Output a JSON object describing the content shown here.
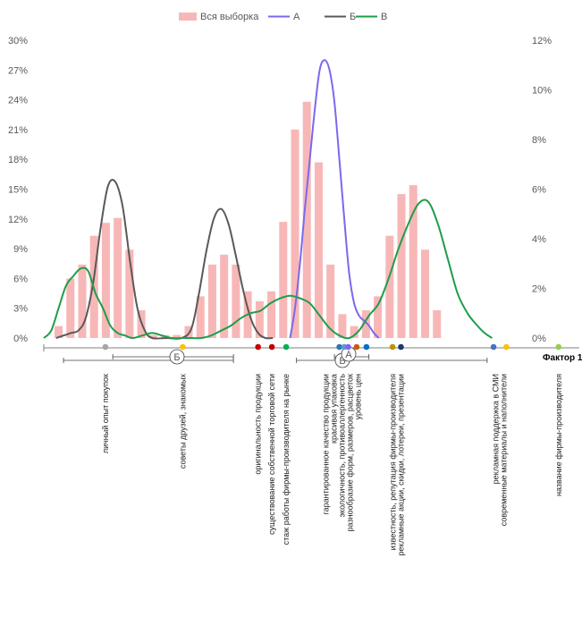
{
  "chart_data": {
    "type": "bar",
    "legend": {
      "position": "top",
      "entries": [
        {
          "key": "all",
          "label": "Вся выборка",
          "kind": "bar"
        },
        {
          "key": "A",
          "label": "А",
          "kind": "line"
        },
        {
          "key": "B",
          "label": "Б",
          "kind": "line"
        },
        {
          "key": "V",
          "label": "В",
          "kind": "line"
        }
      ]
    },
    "y_left": {
      "ticks": [
        "0%",
        "3%",
        "6%",
        "9%",
        "12%",
        "15%",
        "18%",
        "21%",
        "24%",
        "27%",
        "30%"
      ],
      "ylim": [
        0,
        30
      ]
    },
    "y_right": {
      "ticks": [
        "0%",
        "2%",
        "4%",
        "6%",
        "8%",
        "10%",
        "12%"
      ],
      "ylim": [
        0,
        12
      ]
    },
    "xlabel": "Фактор 1",
    "xlim": [
      0,
      100
    ],
    "grid": false,
    "colors": {
      "all": "#f7b7b7",
      "A": "#7b68ee",
      "B": "#595959",
      "V": "#1e9e49"
    },
    "series": [
      {
        "name": "Вся выборка",
        "key": "all",
        "axis": "left",
        "x": [
          3,
          5.4,
          7.8,
          10.2,
          12.6,
          15,
          17.4,
          19.8,
          22.2,
          24.6,
          27,
          29.4,
          31.8,
          34.2,
          36.6,
          39,
          41.4,
          43.8,
          46.2,
          48.6,
          51,
          53.4,
          55.8,
          58.2,
          60.6,
          63,
          65.4,
          67.8,
          70.2,
          72.6,
          75,
          77.4,
          79.8,
          82.2,
          84.6,
          87,
          89.4
        ],
        "values": [
          1.2,
          6,
          7.4,
          10.3,
          11.6,
          12.1,
          8.9,
          2.8,
          0.3,
          0.3,
          0.3,
          1.2,
          4.2,
          7.4,
          8.4,
          7.4,
          4.7,
          3.7,
          4.7,
          11.7,
          21,
          23.8,
          17.7,
          7.4,
          2.4,
          1.2,
          2.8,
          4.2,
          10.3,
          14.5,
          15.4,
          8.9,
          2.8,
          0,
          0,
          0,
          0
        ]
      },
      {
        "name": "А",
        "key": "A",
        "axis": "right",
        "x": [
          50,
          51,
          52,
          53,
          54,
          55,
          56,
          57,
          58,
          59,
          60,
          61,
          62,
          63,
          64,
          65,
          66,
          67,
          68
        ],
        "values": [
          0,
          1.2,
          3,
          5.2,
          7.2,
          9.2,
          10.8,
          11.2,
          10.8,
          9.5,
          7.2,
          4.8,
          2.6,
          1.4,
          0.9,
          0.7,
          0.5,
          0.2,
          0
        ]
      },
      {
        "name": "Б",
        "key": "B",
        "axis": "right",
        "x": [
          2.5,
          4,
          5.5,
          7,
          8.5,
          10,
          11.5,
          13,
          14.5,
          16,
          17.5,
          19,
          20.5,
          22,
          25,
          28,
          30,
          31.5,
          33,
          34.5,
          36,
          37.5,
          39,
          40.5,
          42,
          43.5,
          45,
          46.5
        ],
        "values": [
          0,
          0.1,
          0.2,
          0.3,
          0.8,
          2.2,
          4.4,
          6.1,
          6.3,
          5.3,
          3.1,
          1.2,
          0.3,
          0,
          0,
          0,
          0.4,
          1.8,
          3.5,
          4.8,
          5.2,
          4.6,
          3.3,
          1.9,
          0.8,
          0.2,
          0,
          0
        ]
      },
      {
        "name": "В",
        "key": "V",
        "axis": "right",
        "x": [
          0,
          1.5,
          3,
          4.5,
          6,
          7.5,
          9,
          10.5,
          12,
          13.5,
          15,
          16.5,
          18,
          20,
          22,
          24,
          26,
          28,
          30,
          32,
          34,
          36,
          38,
          40,
          42,
          44,
          46,
          48,
          50,
          52,
          54,
          56,
          58,
          60,
          62,
          64,
          66,
          68,
          70,
          72,
          74,
          76,
          78,
          80,
          82,
          84,
          86,
          88,
          89.5,
          91
        ],
        "values": [
          0,
          0.3,
          1.2,
          2.1,
          2.5,
          2.8,
          2.7,
          1.8,
          1.2,
          0.5,
          0.2,
          0.1,
          0,
          0.1,
          0.2,
          0.1,
          0,
          0,
          0,
          0,
          0.1,
          0.3,
          0.5,
          0.8,
          1,
          1.1,
          1.4,
          1.6,
          1.7,
          1.6,
          1.4,
          0.9,
          0.4,
          0.1,
          0,
          0.3,
          0.9,
          1.4,
          2.4,
          3.6,
          4.6,
          5.4,
          5.5,
          4.6,
          3.2,
          1.8,
          1,
          0.5,
          0.2,
          0
        ]
      }
    ],
    "markers": [
      {
        "x": 12.5,
        "color": "#a6a6a6"
      },
      {
        "x": 28.2,
        "color": "#ffc000"
      },
      {
        "x": 43.5,
        "color": "#c00000"
      },
      {
        "x": 46.3,
        "color": "#c00000"
      },
      {
        "x": 49.2,
        "color": "#00b050"
      },
      {
        "x": 60,
        "color": "#2e75b6"
      },
      {
        "x": 61,
        "color": "#5b9bd5"
      },
      {
        "x": 61.8,
        "color": "#7b68ee"
      },
      {
        "x": 63.5,
        "color": "#c55a11"
      },
      {
        "x": 65.5,
        "color": "#0070c0"
      },
      {
        "x": 70.8,
        "color": "#bf9000"
      },
      {
        "x": 72.5,
        "color": "#1f3864"
      },
      {
        "x": 91.3,
        "color": "#4472c4"
      },
      {
        "x": 93.9,
        "color": "#ffc000"
      },
      {
        "x": 104.5,
        "color": "#92d050"
      }
    ],
    "category_labels": [
      {
        "x": 12.5,
        "lines": [
          "личный опыт покупок"
        ]
      },
      {
        "x": 28.2,
        "lines": [
          "советы друзей, знакомых"
        ]
      },
      {
        "x": 43.5,
        "lines": [
          "оригинальность продукции"
        ]
      },
      {
        "x": 46.3,
        "lines": [
          "существование собственной торговой сети"
        ]
      },
      {
        "x": 49.2,
        "lines": [
          "стаж работы фирмы-производителя на рынке"
        ]
      },
      {
        "x": 60.5,
        "lines": [
          "гарантированное качество продукции",
          "красивая упаковка",
          "экологичность, противоаллергенность",
          "разнообразие форм, размеров, расцветок",
          "уровень цен"
        ]
      },
      {
        "x": 71.7,
        "lines": [
          "известность, репутация фирмы-производителя",
          "рекламные акции, скидки, лотереи, презентации"
        ]
      },
      {
        "x": 92.6,
        "lines": [
          "рекламная поддержка в СМИ",
          "современные материалы и наполнители"
        ]
      },
      {
        "x": 104.5,
        "lines": [
          "название фирмы-производителя"
        ]
      }
    ],
    "brackets": [
      {
        "label": "Б",
        "from": 4,
        "to": 38.5,
        "tier": 2
      },
      {
        "label": "Б",
        "from": 14,
        "to": 38.5,
        "tier": 1
      },
      {
        "label": "В",
        "from": 51.3,
        "to": 90,
        "tier": 2
      },
      {
        "label": "А",
        "from": 59,
        "to": 66,
        "tier": 1
      }
    ]
  }
}
